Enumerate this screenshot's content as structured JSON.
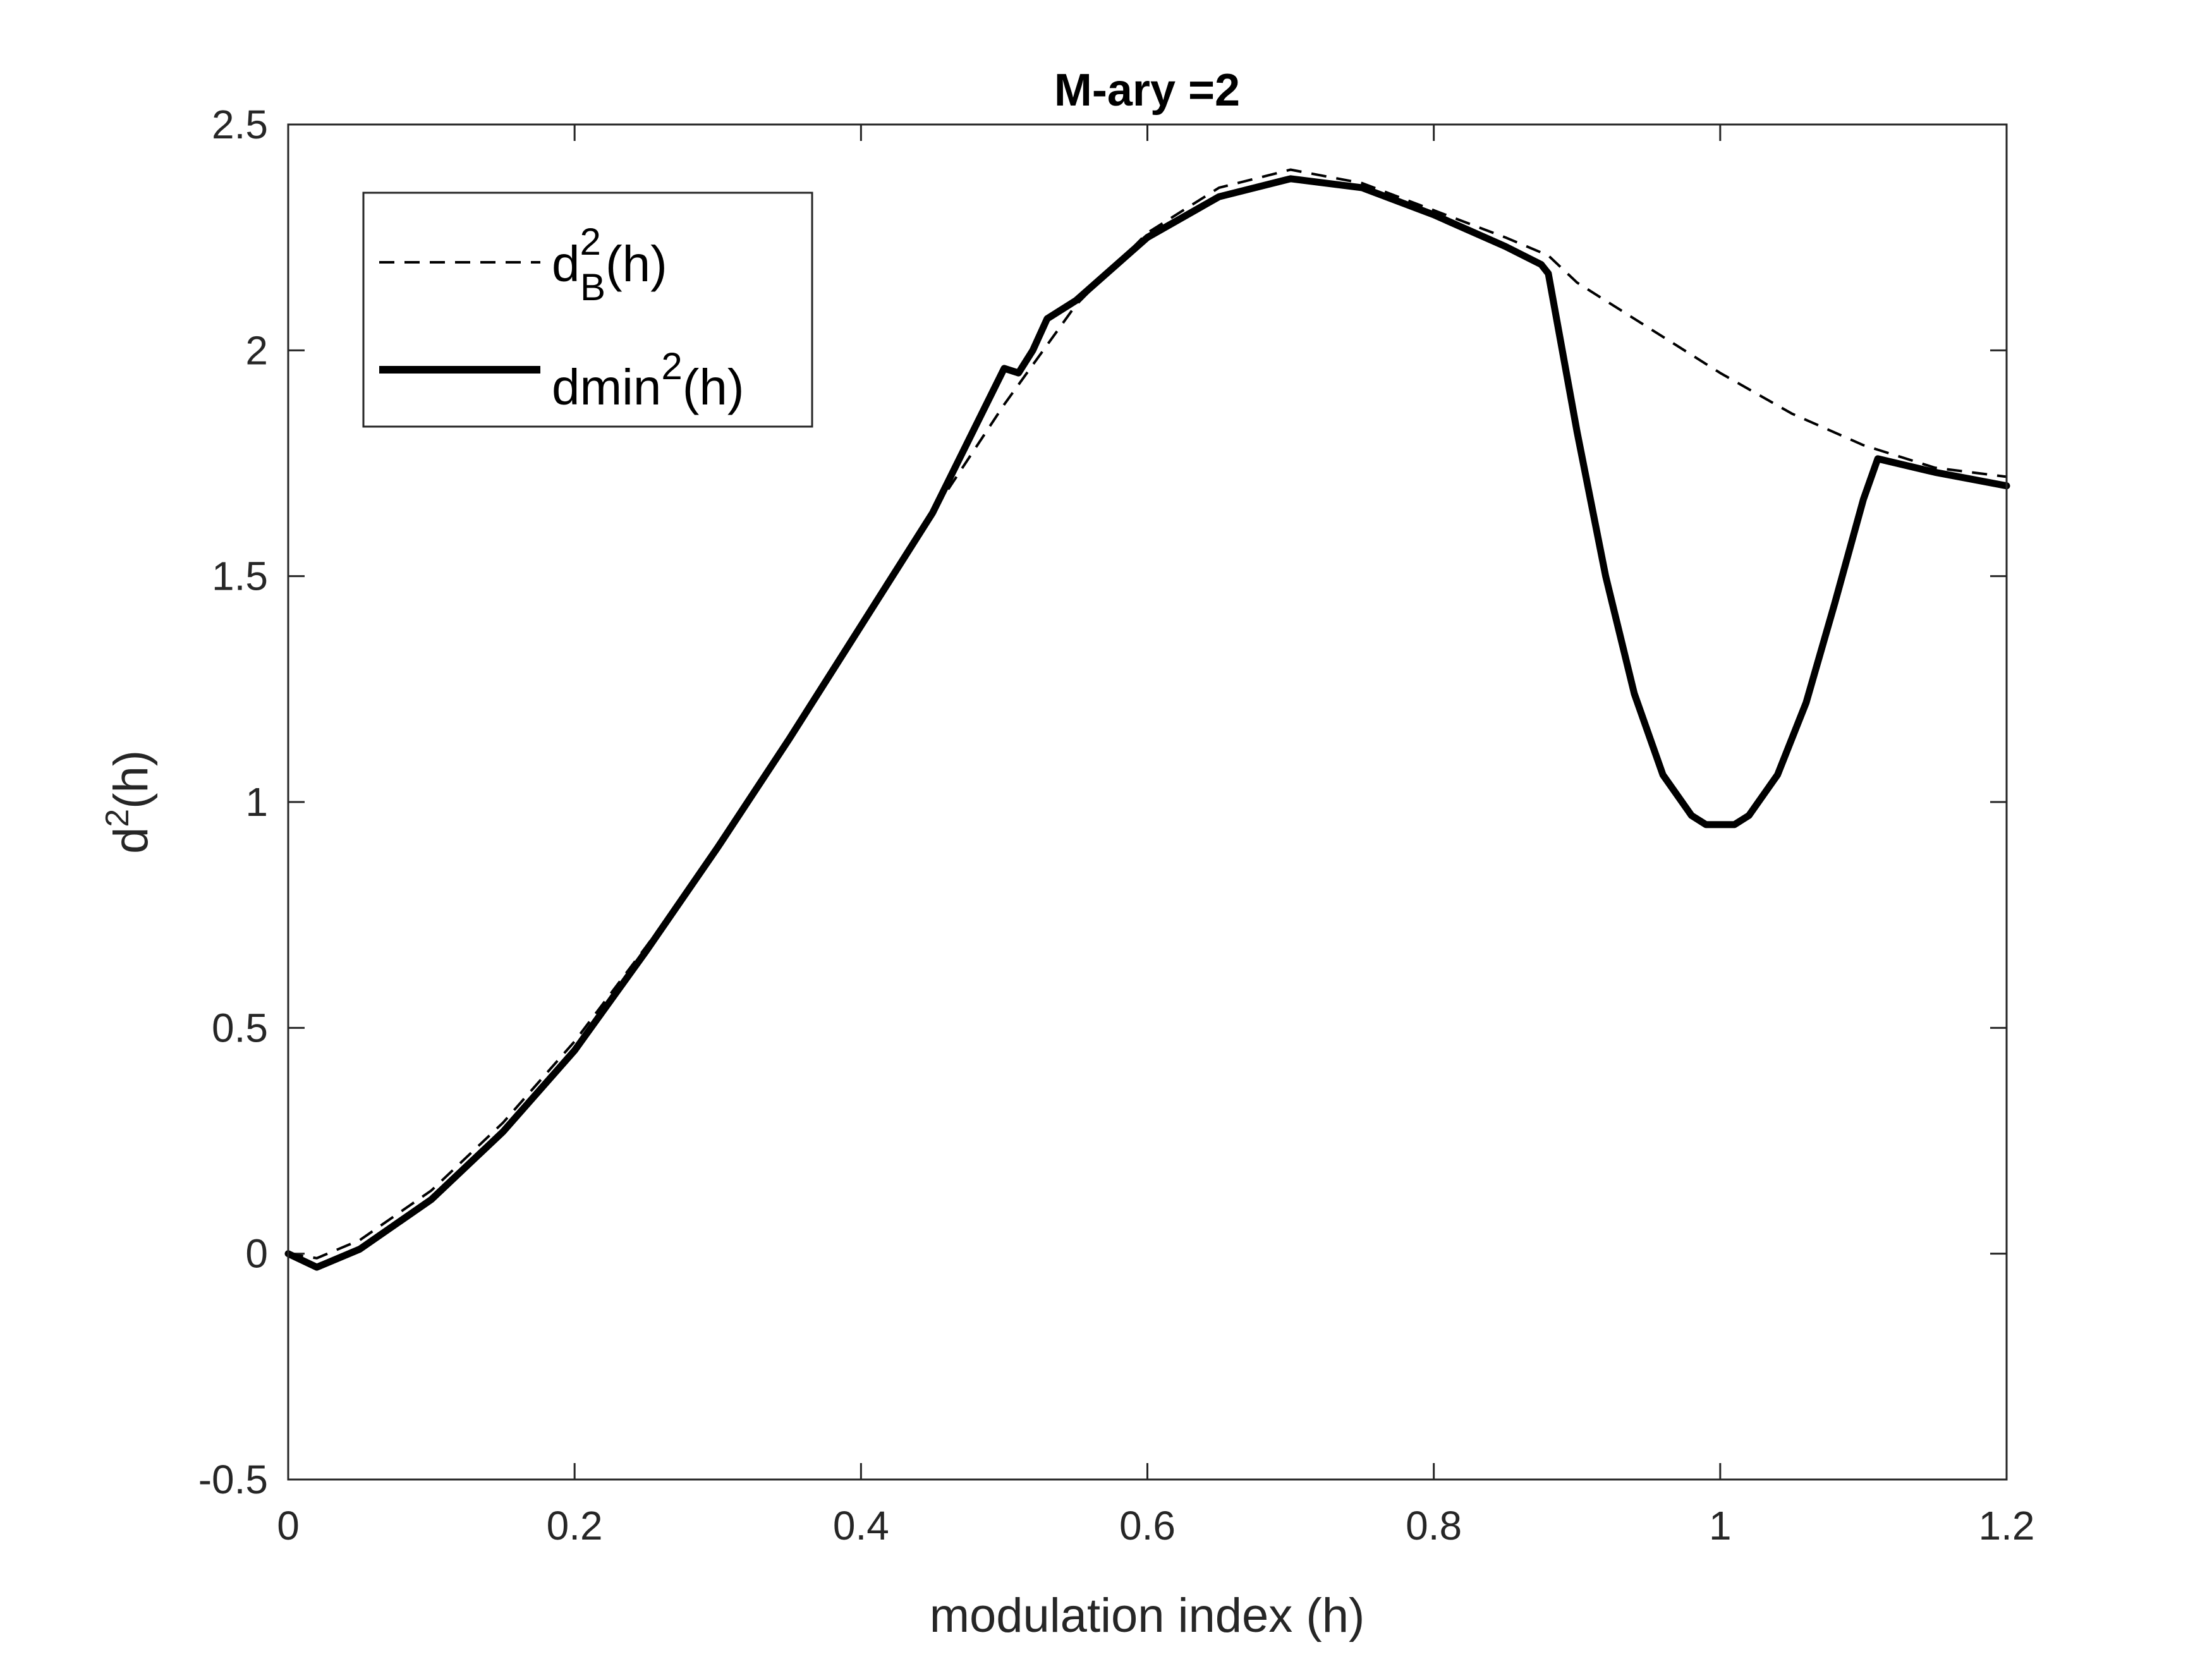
{
  "chart_data": {
    "type": "line",
    "title": "M-ary =2",
    "xlabel": "modulation index (h)",
    "ylabel_base": "d",
    "ylabel_sup": "2",
    "ylabel_rest": "(h)",
    "xlim": [
      0,
      1.2
    ],
    "ylim": [
      -0.5,
      2.5
    ],
    "x_ticks": [
      0,
      0.2,
      0.4,
      0.6,
      0.8,
      1.0,
      1.2
    ],
    "x_tick_labels": [
      "0",
      "0.2",
      "0.4",
      "0.6",
      "0.8",
      "1",
      "1.2"
    ],
    "y_ticks": [
      -0.5,
      0,
      0.5,
      1.0,
      1.5,
      2.0,
      2.5
    ],
    "y_tick_labels": [
      "-0.5",
      "0",
      "0.5",
      "1",
      "1.5",
      "2",
      "2.5"
    ],
    "grid": false,
    "legend_position": "top-left",
    "series": [
      {
        "name_base": "d",
        "name_sup": "2",
        "name_sub": "B",
        "name_rest": "(h)",
        "style": "dashed",
        "color": "#000000",
        "x": [
          0,
          0.02,
          0.05,
          0.1,
          0.15,
          0.2,
          0.25,
          0.3,
          0.35,
          0.4,
          0.45,
          0.5,
          0.55,
          0.6,
          0.65,
          0.7,
          0.75,
          0.8,
          0.85,
          0.88,
          0.9,
          0.95,
          1.0,
          1.05,
          1.1,
          1.15,
          1.2
        ],
        "y": [
          0,
          -0.01,
          0.03,
          0.14,
          0.29,
          0.47,
          0.68,
          0.9,
          1.14,
          1.39,
          1.64,
          1.88,
          2.1,
          2.26,
          2.36,
          2.4,
          2.37,
          2.31,
          2.25,
          2.21,
          2.15,
          2.05,
          1.95,
          1.86,
          1.79,
          1.74,
          1.72
        ]
      },
      {
        "name_base": "dmin",
        "name_sup": "2",
        "name_sub": "",
        "name_rest": "(h)",
        "style": "solid",
        "color": "#000000",
        "x": [
          0,
          0.02,
          0.05,
          0.1,
          0.15,
          0.2,
          0.25,
          0.3,
          0.35,
          0.4,
          0.45,
          0.5,
          0.51,
          0.52,
          0.53,
          0.55,
          0.6,
          0.65,
          0.7,
          0.75,
          0.8,
          0.85,
          0.875,
          0.88,
          0.9,
          0.92,
          0.94,
          0.96,
          0.98,
          0.99,
          1.0,
          1.01,
          1.02,
          1.04,
          1.06,
          1.08,
          1.1,
          1.11,
          1.15,
          1.2
        ],
        "y": [
          0,
          -0.03,
          0.01,
          0.12,
          0.27,
          0.45,
          0.67,
          0.9,
          1.14,
          1.39,
          1.64,
          1.96,
          1.95,
          2.0,
          2.07,
          2.11,
          2.25,
          2.34,
          2.38,
          2.36,
          2.3,
          2.23,
          2.19,
          2.17,
          1.82,
          1.5,
          1.24,
          1.06,
          0.97,
          0.95,
          0.95,
          0.95,
          0.97,
          1.06,
          1.22,
          1.44,
          1.67,
          1.76,
          1.73,
          1.7
        ]
      }
    ]
  }
}
